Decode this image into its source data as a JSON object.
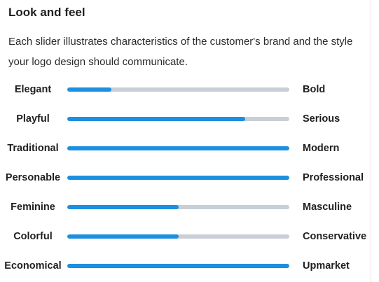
{
  "section": {
    "title": "Look and feel",
    "description": "Each slider illustrates characteristics of the customer's brand and the style your logo design should communicate."
  },
  "sliders": [
    {
      "left": "Elegant",
      "right": "Bold",
      "value": 0.2
    },
    {
      "left": "Playful",
      "right": "Serious",
      "value": 0.8
    },
    {
      "left": "Traditional",
      "right": "Modern",
      "value": 1.0
    },
    {
      "left": "Personable",
      "right": "Professional",
      "value": 1.0
    },
    {
      "left": "Feminine",
      "right": "Masculine",
      "value": 0.5
    },
    {
      "left": "Colorful",
      "right": "Conservative",
      "value": 0.5
    },
    {
      "left": "Economical",
      "right": "Upmarket",
      "value": 1.0
    }
  ],
  "colors": {
    "fill": "#1c8fe0",
    "track": "#c9cfd6"
  }
}
